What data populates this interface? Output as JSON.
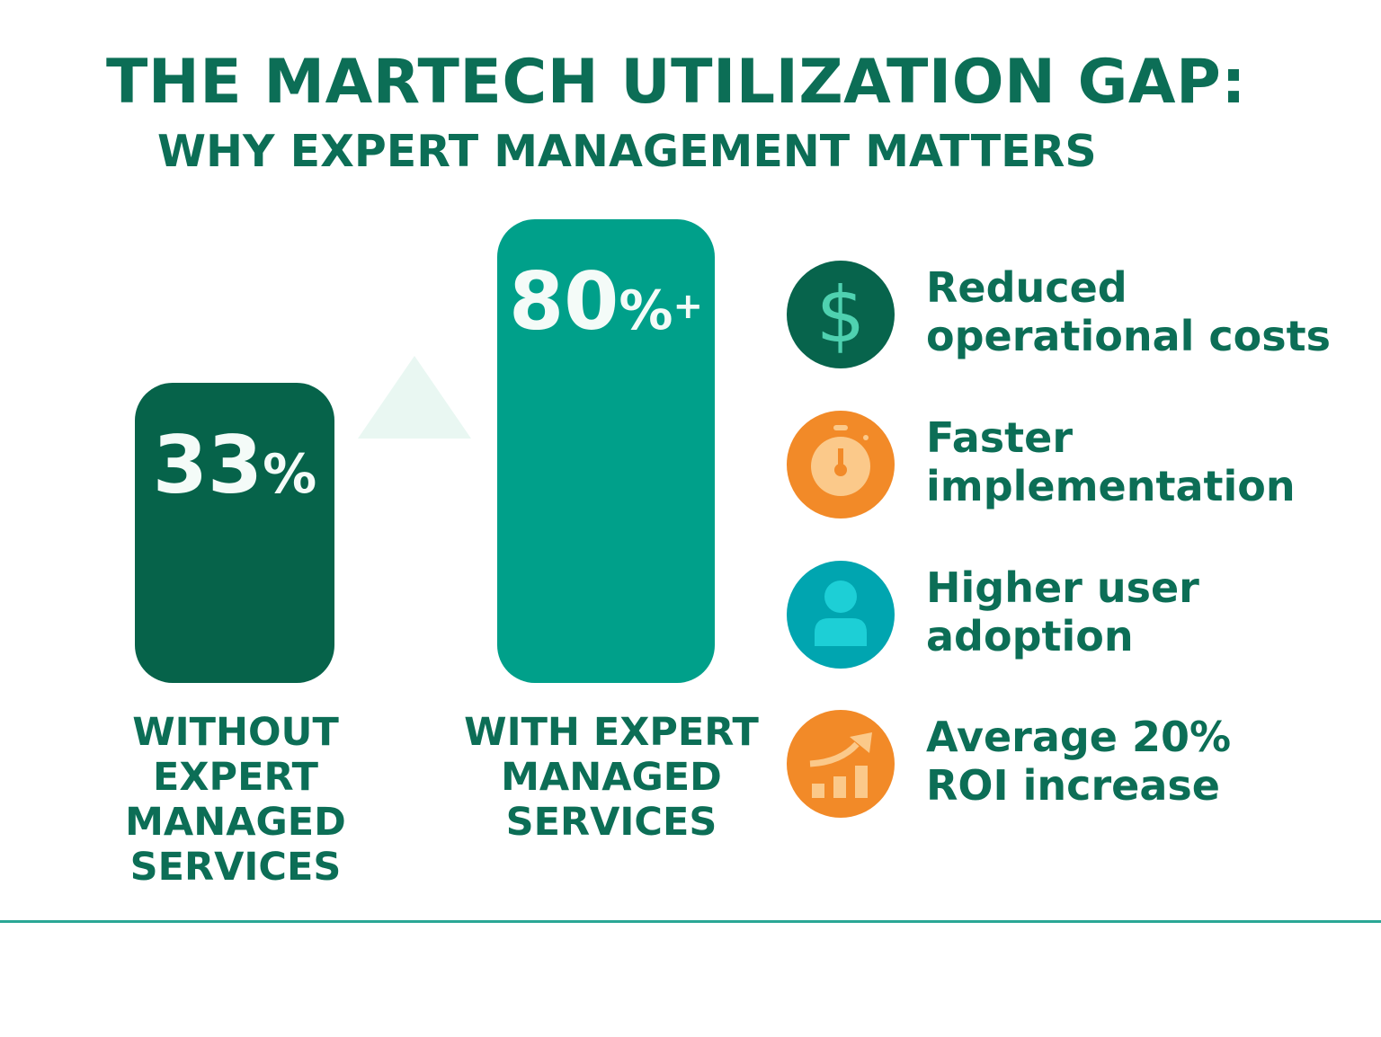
{
  "title": "THE MARTECH UTILIZATION GAP:",
  "subtitle": "WHY EXPERT MANAGEMENT MATTERS",
  "bars": [
    {
      "number": "33",
      "unit": "%",
      "suffix": "",
      "value": 33,
      "label_lines": [
        "WITHOUT",
        "EXPERT",
        "MANAGED",
        "SERVICES"
      ],
      "color": "#06634a"
    },
    {
      "number": "80",
      "unit": "%",
      "suffix": "+",
      "value": 80,
      "label_lines": [
        "WITH EXPERT",
        "MANAGED",
        "SERVICES"
      ],
      "color": "#00a08a"
    }
  ],
  "benefits": [
    {
      "icon": "dollar-icon",
      "lines": [
        "Reduced",
        "operational costs"
      ],
      "color": "#07644c"
    },
    {
      "icon": "stopwatch-icon",
      "lines": [
        "Faster",
        "implementation"
      ],
      "color": "#f28a28"
    },
    {
      "icon": "user-icon",
      "lines": [
        "Higher user",
        "adoption"
      ],
      "color": "#00a5b0"
    },
    {
      "icon": "growth-chart-icon",
      "lines": [
        "Average 20%",
        "ROI increase"
      ],
      "color": "#f28a28"
    }
  ]
}
